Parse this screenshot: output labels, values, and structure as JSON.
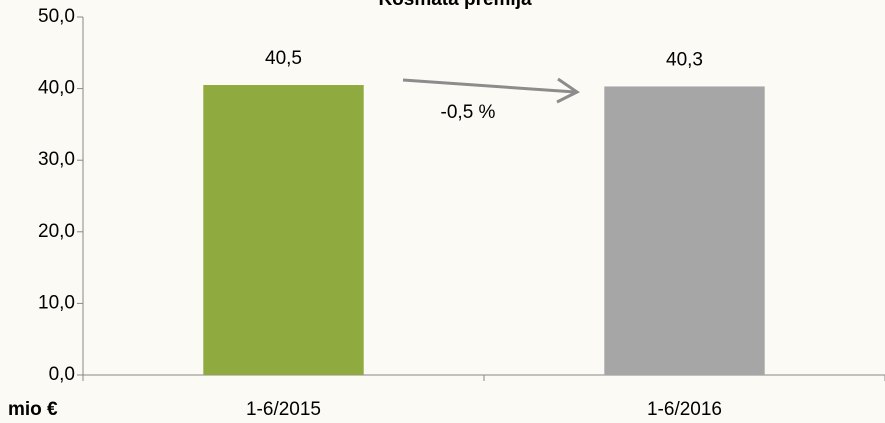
{
  "chart_data": {
    "type": "bar",
    "title": "Kosmata premija",
    "categories": [
      "1-6/2015",
      "1-6/2016"
    ],
    "values": [
      40.5,
      40.3
    ],
    "value_labels": [
      "40,5",
      "40,3"
    ],
    "colors": [
      "#8faa3f",
      "#a6a6a6"
    ],
    "ylim": [
      0,
      50
    ],
    "yticks": [
      {
        "value": 0,
        "label": "0,0"
      },
      {
        "value": 10,
        "label": "10,0"
      },
      {
        "value": 20,
        "label": "20,0"
      },
      {
        "value": 30,
        "label": "30,0"
      },
      {
        "value": 40,
        "label": "40,0"
      },
      {
        "value": 50,
        "label": "50,0"
      }
    ],
    "y_axis_label": "mio €",
    "annotation": "-0,5 %"
  }
}
